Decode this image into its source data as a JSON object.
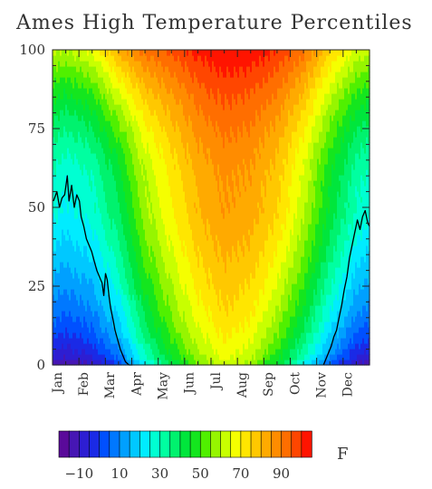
{
  "chart_data": {
    "type": "heatmap",
    "title": "Ames High Temperature Percentiles",
    "xlabel": "",
    "ylabel": "",
    "units": "F",
    "ylim": [
      0,
      100
    ],
    "y_ticks": [
      "0",
      "25",
      "50",
      "75",
      "100"
    ],
    "x_categories": [
      "Jan",
      "Feb",
      "Mar",
      "Apr",
      "May",
      "Jun",
      "Jul",
      "Aug",
      "Sep",
      "Oct",
      "Nov",
      "Dec"
    ],
    "colorbar": {
      "range": [
        -20,
        105
      ],
      "step": 5,
      "labels": [
        "−10",
        "10",
        "30",
        "50",
        "70",
        "90"
      ],
      "label_values": [
        -10,
        10,
        30,
        50,
        70,
        90
      ],
      "colors": [
        "#5a0a9a",
        "#4616b4",
        "#2d1ed2",
        "#1a2ae6",
        "#0050ff",
        "#0078ff",
        "#00a0ff",
        "#00c8ff",
        "#00ecff",
        "#00ffd2",
        "#00ffa0",
        "#00f26e",
        "#00e63c",
        "#14e61e",
        "#50f000",
        "#96f500",
        "#c8ff00",
        "#f5ff00",
        "#ffe600",
        "#ffc800",
        "#ffaa00",
        "#ff8c00",
        "#ff6e00",
        "#ff4600",
        "#ff1400"
      ]
    },
    "percentile_model": {
      "comment_free": true,
      "months_mid": [
        0.5,
        1.5,
        2.5,
        3.5,
        4.5,
        5.5,
        6.5,
        7.5,
        8.5,
        9.5,
        10.5,
        11.5
      ],
      "p0": [
        -18,
        -14,
        -2,
        22,
        38,
        52,
        62,
        56,
        40,
        22,
        2,
        -14
      ],
      "p50": [
        24,
        28,
        40,
        58,
        70,
        80,
        85,
        83,
        76,
        62,
        44,
        30
      ],
      "p100": [
        60,
        66,
        82,
        92,
        96,
        102,
        105,
        104,
        100,
        92,
        76,
        64
      ]
    },
    "series": [
      {
        "type": "line",
        "points": [
          [
            1,
            52
          ],
          [
            5,
            55
          ],
          [
            8,
            50
          ],
          [
            11,
            53
          ],
          [
            14,
            54
          ],
          [
            17,
            60
          ],
          [
            19,
            52
          ],
          [
            22,
            57
          ],
          [
            25,
            50
          ],
          [
            28,
            54
          ],
          [
            31,
            52
          ],
          [
            33,
            47
          ],
          [
            36,
            44
          ],
          [
            39,
            40
          ],
          [
            42,
            38
          ],
          [
            45,
            36
          ],
          [
            48,
            33
          ],
          [
            51,
            30
          ],
          [
            54,
            28
          ],
          [
            57,
            26
          ],
          [
            59,
            22
          ],
          [
            61,
            29
          ],
          [
            63,
            27
          ],
          [
            65,
            22
          ],
          [
            67,
            18
          ],
          [
            70,
            14
          ],
          [
            72,
            11
          ],
          [
            75,
            8
          ],
          [
            78,
            5
          ],
          [
            81,
            3
          ],
          [
            84,
            1
          ],
          [
            88,
            0
          ],
          [
            92,
            0
          ],
          [
            312,
            0
          ],
          [
            315,
            2
          ],
          [
            318,
            4
          ],
          [
            321,
            6
          ],
          [
            324,
            9
          ],
          [
            327,
            11
          ],
          [
            330,
            15
          ],
          [
            333,
            19
          ],
          [
            336,
            24
          ],
          [
            339,
            28
          ],
          [
            342,
            34
          ],
          [
            345,
            38
          ],
          [
            348,
            42
          ],
          [
            351,
            46
          ],
          [
            354,
            43
          ],
          [
            357,
            47
          ],
          [
            360,
            49
          ],
          [
            363,
            45
          ],
          [
            365,
            44
          ]
        ]
      }
    ]
  }
}
